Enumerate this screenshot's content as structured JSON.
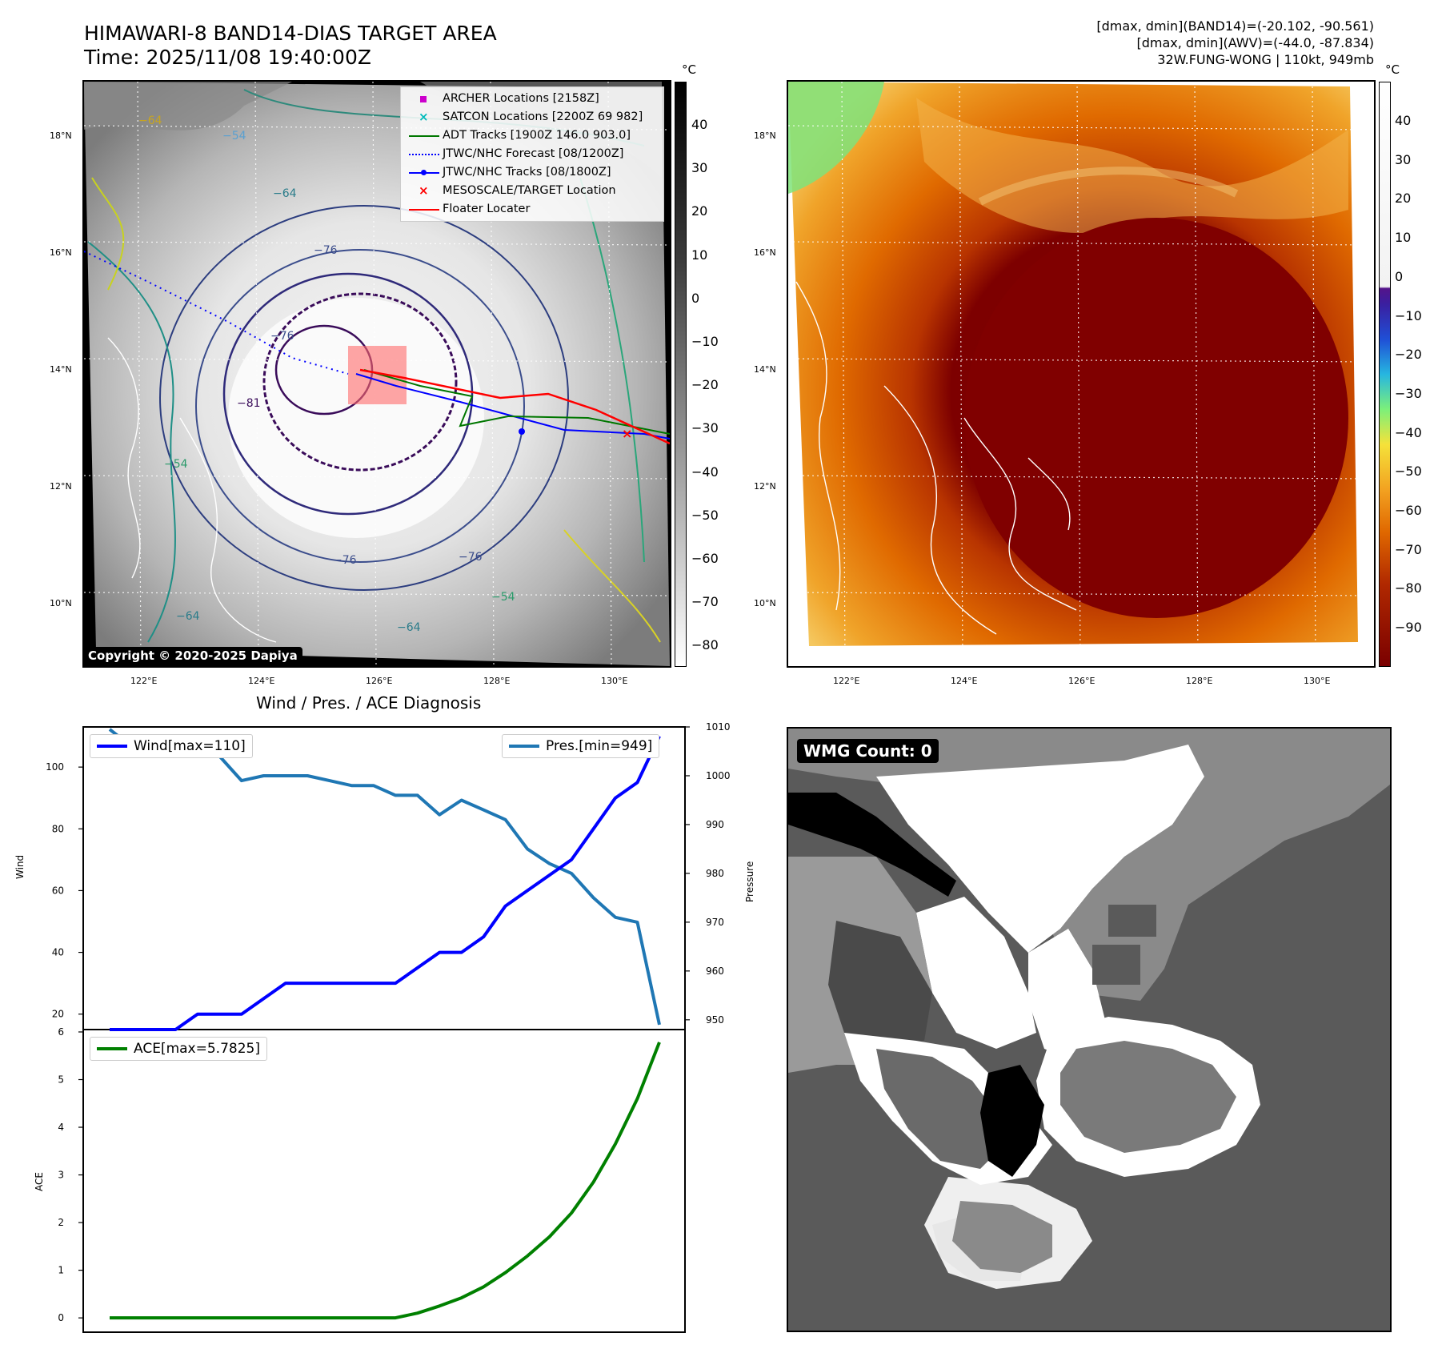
{
  "header": {
    "title_line1": "HIMAWARI-8 BAND14-DIAS TARGET AREA",
    "title_line2": "Time: 2025/11/08 19:40:00Z",
    "stats_line1": "[dmax, dmin](BAND14)=(-20.102, -90.561)",
    "stats_line2": "[dmax, dmin](AWV)=(-44.0, -87.834)",
    "stats_line3": "32W.FUNG-WONG | 110kt, 949mb"
  },
  "ir_panel": {
    "unit": "°C",
    "lat_labels": [
      "18°N",
      "16°N",
      "14°N",
      "12°N",
      "10°N"
    ],
    "lon_labels": [
      "122°E",
      "124°E",
      "126°E",
      "128°E",
      "130°E"
    ],
    "colorbar_ticks": [
      "40",
      "30",
      "20",
      "10",
      "0",
      "−10",
      "−20",
      "−30",
      "−40",
      "−50",
      "−60",
      "−70",
      "−80"
    ],
    "contour_labels": [
      "−64",
      "−54",
      "−64",
      "−64",
      "−54",
      "−64",
      "−76",
      "−76",
      "−76",
      "−81",
      "−54",
      "−76"
    ],
    "legend": [
      {
        "label": "ARCHER Locations [2158Z]",
        "color": "#cc00cc",
        "symbol": "square"
      },
      {
        "label": "SATCON Locations [2200Z 69 982]",
        "color": "#00bbbb",
        "symbol": "x"
      },
      {
        "label": "ADT Tracks [1900Z 146.0 903.0]",
        "color": "#007700",
        "symbol": "line"
      },
      {
        "label": "JTWC/NHC Forecast [08/1200Z]",
        "color": "#0000ff",
        "symbol": "dotted"
      },
      {
        "label": "JTWC/NHC Tracks [08/1800Z]",
        "color": "#0000ff",
        "symbol": "line-dot"
      },
      {
        "label": "MESOSCALE/TARGET Location",
        "color": "#ff0000",
        "symbol": "x"
      },
      {
        "label": "Floater Locater",
        "color": "#ff0000",
        "symbol": "line"
      }
    ],
    "copyright": "Copyright © 2020-2025 Dapiya"
  },
  "awv_panel": {
    "unit": "°C",
    "lat_labels": [
      "18°N",
      "16°N",
      "14°N",
      "12°N",
      "10°N"
    ],
    "lon_labels": [
      "122°E",
      "124°E",
      "126°E",
      "128°E",
      "130°E"
    ],
    "colorbar_ticks": [
      "40",
      "30",
      "20",
      "10",
      "0",
      "−10",
      "−20",
      "−30",
      "−40",
      "−50",
      "−60",
      "−70",
      "−80",
      "−90"
    ]
  },
  "diagnosis": {
    "title": "Wind / Pres. / ACE Diagnosis",
    "wind_legend": "Wind[max=110]",
    "pres_legend": "Pres.[min=949]",
    "ace_legend": "ACE[max=5.7825]",
    "wind_axis_label": "Wind",
    "pres_axis_label": "Pressure",
    "ace_axis_label": "ACE",
    "wind_ticks": [
      "100",
      "80",
      "60",
      "40",
      "20"
    ],
    "pres_ticks": [
      "1010",
      "1000",
      "990",
      "980",
      "970",
      "960",
      "950"
    ],
    "ace_ticks": [
      "6",
      "5",
      "4",
      "3",
      "2",
      "1",
      "0"
    ]
  },
  "wmg": {
    "label": "WMG Count: 0"
  },
  "chart_data": [
    {
      "type": "line",
      "title": "Wind / Pres. / ACE Diagnosis",
      "ylabel": "Wind",
      "ylabel_right": "Pressure",
      "x": [
        0,
        1,
        2,
        3,
        4,
        5,
        6,
        7,
        8,
        9,
        10,
        11,
        12,
        13,
        14,
        15,
        16,
        17,
        18,
        19,
        20,
        21,
        22,
        23,
        24,
        25
      ],
      "series": [
        {
          "name": "Wind[max=110]",
          "color": "#0000ff",
          "axis": "left",
          "values": [
            15,
            15,
            15,
            15,
            20,
            20,
            20,
            25,
            30,
            30,
            30,
            30,
            30,
            30,
            35,
            40,
            40,
            45,
            55,
            60,
            65,
            70,
            80,
            90,
            95,
            110
          ]
        },
        {
          "name": "Pres.[min=949]",
          "color": "#1f77b4",
          "axis": "right",
          "values": [
            1009.5,
            1006,
            1006,
            1006,
            1005,
            1004,
            999,
            1000,
            1000,
            1000,
            999,
            998,
            998,
            996,
            996,
            992,
            995,
            993,
            991,
            985,
            982,
            980,
            975,
            971,
            970,
            949
          ]
        }
      ],
      "ylim": [
        15,
        113
      ],
      "ylim_right": [
        948,
        1010
      ]
    },
    {
      "type": "line",
      "ylabel": "ACE",
      "x": [
        0,
        1,
        2,
        3,
        4,
        5,
        6,
        7,
        8,
        9,
        10,
        11,
        12,
        13,
        14,
        15,
        16,
        17,
        18,
        19,
        20,
        21,
        22,
        23,
        24,
        25
      ],
      "series": [
        {
          "name": "ACE[max=5.7825]",
          "color": "#008000",
          "values": [
            0,
            0,
            0,
            0,
            0,
            0,
            0,
            0,
            0,
            0,
            0,
            0,
            0,
            0,
            0.1,
            0.25,
            0.42,
            0.65,
            0.95,
            1.3,
            1.7,
            2.2,
            2.85,
            3.65,
            4.6,
            5.7825
          ]
        }
      ],
      "ylim": [
        -0.3,
        6.05
      ]
    }
  ]
}
